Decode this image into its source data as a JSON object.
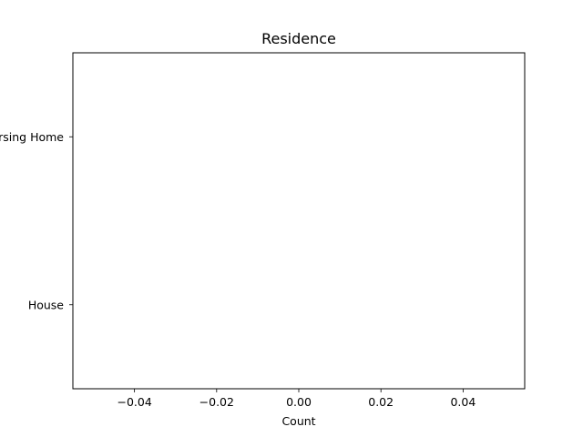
{
  "chart_data": {
    "type": "bar",
    "orientation": "horizontal",
    "title": "Residence",
    "xlabel": "Count",
    "ylabel": "",
    "categories": [
      "House",
      "Nursing Home"
    ],
    "values": [
      0,
      0
    ],
    "xlim": [
      -0.055,
      0.055
    ],
    "xticks": [
      -0.04,
      -0.02,
      0.0,
      0.02,
      0.04
    ],
    "xtick_labels": [
      "−0.04",
      "−0.02",
      "0.00",
      "0.02",
      "0.04"
    ],
    "grid": false,
    "legend": "none",
    "colors": {
      "axes": "#000000",
      "background": "#ffffff",
      "bar": "#1f77b4"
    }
  }
}
